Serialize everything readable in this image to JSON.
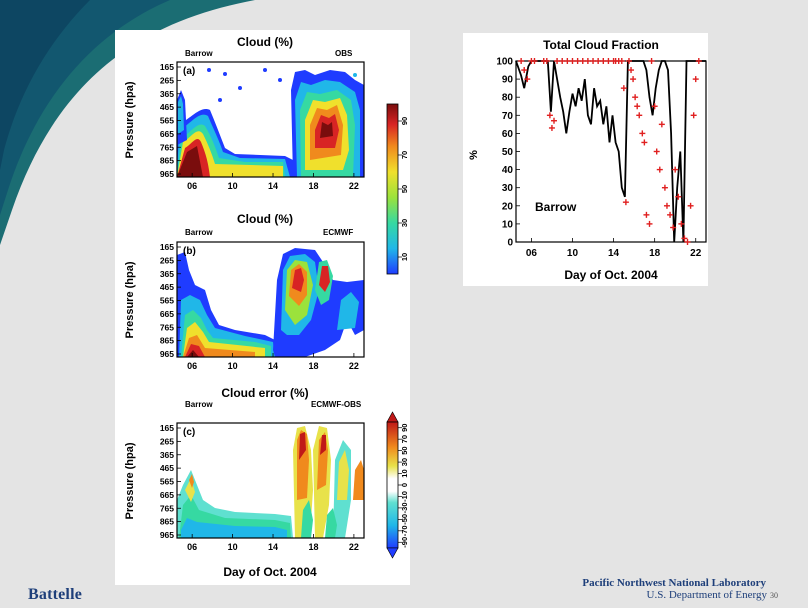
{
  "slide": {
    "brand": "Battelle",
    "footer_org": "Pacific Northwest National Laboratory",
    "footer_doe": "U.S. Department of Energy",
    "page_number": "30",
    "colors": {
      "navy": "#1e3f7a",
      "teal": "#1b6d73"
    }
  },
  "chart_data": [
    {
      "type": "heatmap",
      "panel_label": "(a)",
      "title": "Cloud (%)",
      "location": "Barrow",
      "source": "OBS",
      "ylabel": "Pressure (hpa)",
      "y_ticks": [
        "165",
        "265",
        "365",
        "465",
        "565",
        "665",
        "765",
        "865",
        "965"
      ],
      "x_ticks": [
        "06",
        "10",
        "14",
        "18",
        "22"
      ],
      "colorbar_ticks": [
        "10",
        "30",
        "50",
        "70",
        "90"
      ]
    },
    {
      "type": "heatmap",
      "panel_label": "(b)",
      "title": "Cloud (%)",
      "location": "Barrow",
      "source": "ECMWF",
      "ylabel": "Pressure (hpa)",
      "y_ticks": [
        "165",
        "265",
        "365",
        "465",
        "565",
        "665",
        "765",
        "865",
        "965"
      ],
      "x_ticks": [
        "06",
        "10",
        "14",
        "18",
        "22"
      ]
    },
    {
      "type": "heatmap",
      "panel_label": "(c)",
      "title": "Cloud error (%)",
      "location": "Barrow",
      "source": "ECMWF-OBS",
      "ylabel": "Pressure (hpa)",
      "y_ticks": [
        "165",
        "265",
        "365",
        "465",
        "565",
        "665",
        "765",
        "865",
        "965"
      ],
      "x_ticks": [
        "06",
        "10",
        "14",
        "18",
        "22"
      ],
      "xlabel": "Day of Oct. 2004",
      "colorbar_ticks": [
        "-90",
        "-70",
        "-50",
        "-30",
        "-10",
        "0",
        "10",
        "30",
        "50",
        "70",
        "90"
      ]
    },
    {
      "type": "line",
      "title": "Total Cloud Fraction",
      "annotation": "Barrow",
      "xlabel": "Day of Oct. 2004",
      "ylabel": "%",
      "ylim": [
        0,
        100
      ],
      "xlim": [
        4.5,
        23
      ],
      "y_ticks": [
        "0",
        "10",
        "20",
        "30",
        "40",
        "50",
        "60",
        "70",
        "80",
        "90",
        "100"
      ],
      "x_ticks": [
        "06",
        "10",
        "14",
        "18",
        "22"
      ],
      "series": [
        {
          "style": "line",
          "color": "#000000",
          "x": [
            4.5,
            5,
            5.3,
            5.7,
            6,
            6.3,
            6.7,
            7,
            7.3,
            7.6,
            7.9,
            8.2,
            8.5,
            8.8,
            9.1,
            9.4,
            9.7,
            10,
            10.3,
            10.6,
            10.9,
            11.2,
            11.5,
            11.8,
            12.1,
            12.4,
            12.7,
            13,
            13.3,
            13.6,
            13.9,
            14.2,
            14.5,
            14.8,
            15.1,
            15.4,
            15.7,
            16,
            16.3,
            16.6,
            16.9,
            17.2,
            17.5,
            17.8,
            18.1,
            18.4,
            18.7,
            19,
            19.3,
            19.6,
            19.9,
            20.2,
            20.5,
            20.8,
            21.1,
            21.4,
            21.7,
            22,
            22.5,
            23
          ],
          "y": [
            100,
            92,
            85,
            97,
            100,
            100,
            100,
            100,
            100,
            100,
            72,
            100,
            90,
            80,
            72,
            60,
            72,
            82,
            75,
            85,
            78,
            90,
            70,
            65,
            85,
            75,
            78,
            65,
            75,
            55,
            70,
            55,
            50,
            30,
            25,
            100,
            100,
            100,
            100,
            100,
            100,
            95,
            80,
            70,
            85,
            95,
            100,
            100,
            95,
            60,
            0,
            30,
            50,
            0,
            100,
            100,
            100,
            100,
            100,
            100
          ]
        },
        {
          "style": "marker",
          "marker": "+",
          "color": "#e02020",
          "x": [
            5,
            5.3,
            5.6,
            6,
            6.3,
            7.2,
            7.5,
            7.8,
            8.0,
            8.2,
            8.5,
            9,
            9.5,
            10,
            10.5,
            11,
            11.5,
            12,
            12.5,
            13,
            13.5,
            14,
            14.2,
            14.5,
            14.8,
            15,
            15.2,
            15.5,
            15.7,
            15.9,
            16.1,
            16.3,
            16.5,
            16.8,
            17,
            17.2,
            17.5,
            17.7,
            18,
            18.2,
            18.5,
            18.7,
            19,
            19.2,
            19.5,
            19.8,
            20,
            20.3,
            20.6,
            20.9,
            21.2,
            21.5,
            21.8,
            22,
            22.3
          ],
          "y": [
            100,
            95,
            90,
            100,
            100,
            100,
            100,
            70,
            63,
            67,
            100,
            100,
            100,
            100,
            100,
            100,
            100,
            100,
            100,
            100,
            100,
            100,
            100,
            100,
            100,
            85,
            22,
            100,
            95,
            90,
            80,
            75,
            70,
            60,
            55,
            15,
            10,
            100,
            75,
            50,
            40,
            65,
            30,
            20,
            15,
            8,
            40,
            25,
            10,
            2,
            0,
            20,
            70,
            90,
            100
          ]
        }
      ]
    }
  ]
}
